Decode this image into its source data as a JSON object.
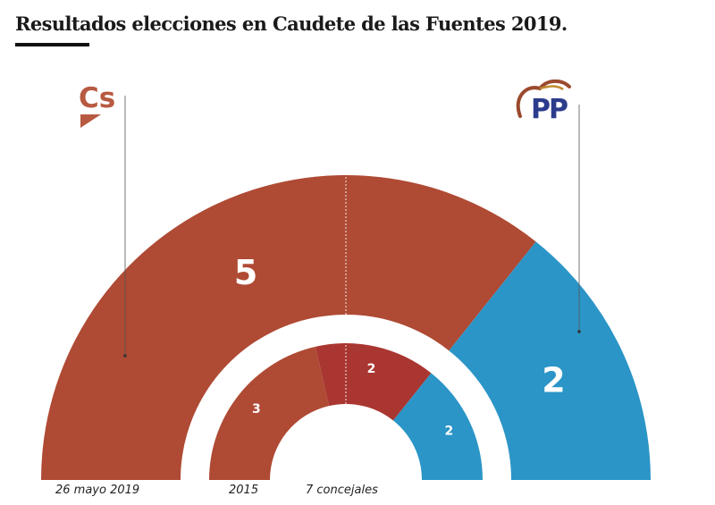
{
  "title": "Resultados elecciones en Caudete de las Fuentes 2019.",
  "colors": {
    "cs": "#AF4A34",
    "cs_prev": "#A93631",
    "pp": "#2B95C7",
    "logo_cs": "#B75A41",
    "logo_pp_text": "#2C3C8C"
  },
  "logos": {
    "cs": {
      "text": "Cs",
      "icon": "ciudadanos-logo-icon"
    },
    "pp": {
      "text": "PP",
      "icon": "partido-popular-logo-icon"
    }
  },
  "footer": {
    "outer_label": "26 mayo 2019",
    "inner_label": "2015",
    "seats_label": "7 concejales"
  },
  "chart_data": {
    "type": "pie",
    "subtype": "parliament-semicircle",
    "total_seats": 7,
    "rings": [
      {
        "name": "26 mayo 2019",
        "segments": [
          {
            "party": "Cs",
            "seats": 5,
            "color": "#AF4A34"
          },
          {
            "party": "PP",
            "seats": 2,
            "color": "#2B95C7"
          }
        ]
      },
      {
        "name": "2015",
        "segments": [
          {
            "party": "",
            "seats": 3,
            "color": "#AF4A34"
          },
          {
            "party": "",
            "seats": 2,
            "color": "#A93631"
          },
          {
            "party": "PP",
            "seats": 2,
            "color": "#2B95C7"
          }
        ]
      }
    ],
    "majority_marker": "dotted center line"
  }
}
